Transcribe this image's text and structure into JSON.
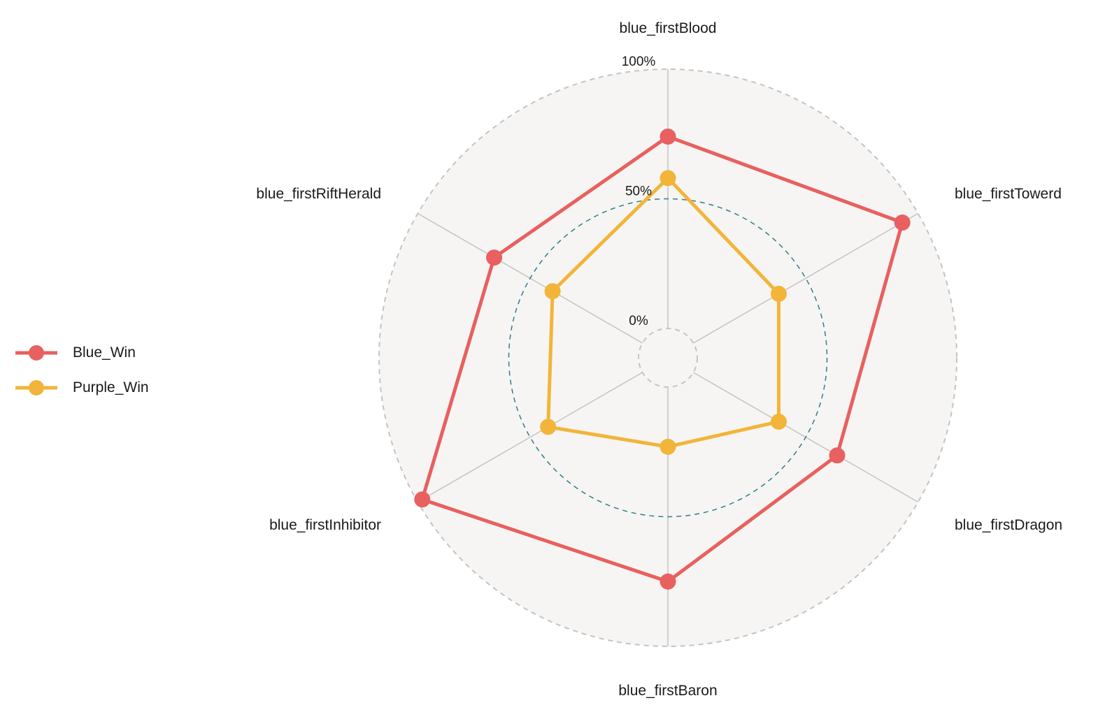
{
  "chart_data": {
    "type": "radar",
    "axes": [
      "blue_firstBlood",
      "blue_firstTowerd",
      "blue_firstDragon",
      "blue_firstBaron",
      "blue_firstInhibitor",
      "blue_firstRiftHerald"
    ],
    "grid_labels": [
      "0%",
      "50%",
      "100%"
    ],
    "grid_values": [
      0,
      50,
      100
    ],
    "range": [
      0,
      100
    ],
    "series": [
      {
        "name": "Blue_Win",
        "color": "#e8605f",
        "values": [
          74,
          93,
          64,
          75,
          98,
          66
        ]
      },
      {
        "name": "Purple_Win",
        "color": "#f2b53a",
        "values": [
          58,
          38,
          38,
          23,
          42,
          40
        ]
      }
    ],
    "legend_position": "left",
    "background_color": "#f6f5f3",
    "grid_color": "#c4c4c4",
    "mid_grid_color": "#2e7d8c"
  },
  "legend": {
    "items": [
      {
        "label": "Blue_Win",
        "color": "#e8605f"
      },
      {
        "label": "Purple_Win",
        "color": "#f2b53a"
      }
    ]
  }
}
